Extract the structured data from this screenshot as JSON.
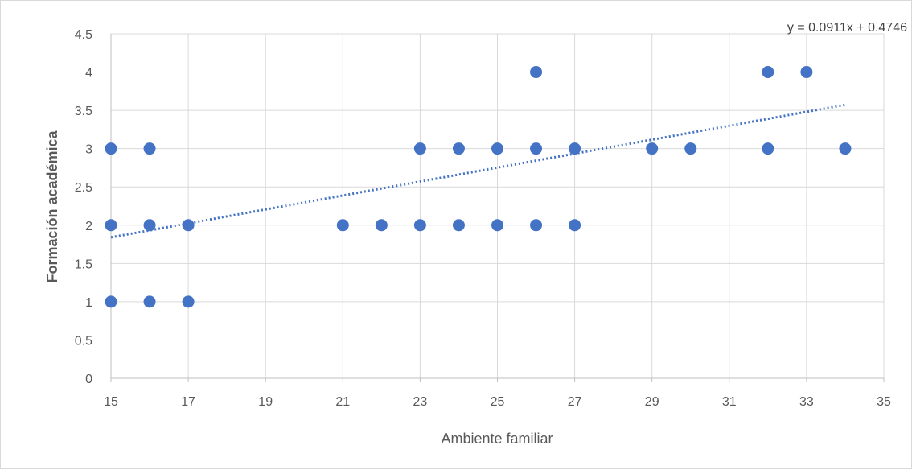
{
  "chart_data": {
    "type": "scatter",
    "title": "",
    "xlabel": "Ambiente familiar",
    "ylabel": "Formación académica",
    "xlim": [
      15,
      35
    ],
    "ylim": [
      0,
      4.5
    ],
    "xticks": [
      "15",
      "17",
      "19",
      "21",
      "23",
      "25",
      "27",
      "29",
      "31",
      "33",
      "35"
    ],
    "yticks": [
      "0",
      "0.5",
      "1",
      "1.5",
      "2",
      "2.5",
      "3",
      "3.5",
      "4",
      "4.5"
    ],
    "grid": true,
    "legend": "none",
    "marker_color": "#4472c4",
    "trendline": {
      "type": "linear",
      "slope": 0.0911,
      "intercept": 0.4746,
      "x_range": [
        15,
        34
      ],
      "style": "dotted",
      "color": "#4472c4",
      "equation_label": "y = 0.0911x + 0.4746"
    },
    "points": [
      {
        "x": 15,
        "y": 3
      },
      {
        "x": 15,
        "y": 2
      },
      {
        "x": 15,
        "y": 1
      },
      {
        "x": 16,
        "y": 3
      },
      {
        "x": 16,
        "y": 2
      },
      {
        "x": 16,
        "y": 1
      },
      {
        "x": 17,
        "y": 2
      },
      {
        "x": 17,
        "y": 1
      },
      {
        "x": 21,
        "y": 2
      },
      {
        "x": 22,
        "y": 2
      },
      {
        "x": 23,
        "y": 3
      },
      {
        "x": 23,
        "y": 2
      },
      {
        "x": 24,
        "y": 3
      },
      {
        "x": 24,
        "y": 2
      },
      {
        "x": 25,
        "y": 3
      },
      {
        "x": 25,
        "y": 2
      },
      {
        "x": 26,
        "y": 4
      },
      {
        "x": 26,
        "y": 3
      },
      {
        "x": 26,
        "y": 2
      },
      {
        "x": 27,
        "y": 3
      },
      {
        "x": 27,
        "y": 2
      },
      {
        "x": 29,
        "y": 3
      },
      {
        "x": 30,
        "y": 3
      },
      {
        "x": 32,
        "y": 4
      },
      {
        "x": 32,
        "y": 3
      },
      {
        "x": 33,
        "y": 4
      },
      {
        "x": 34,
        "y": 3
      }
    ]
  }
}
